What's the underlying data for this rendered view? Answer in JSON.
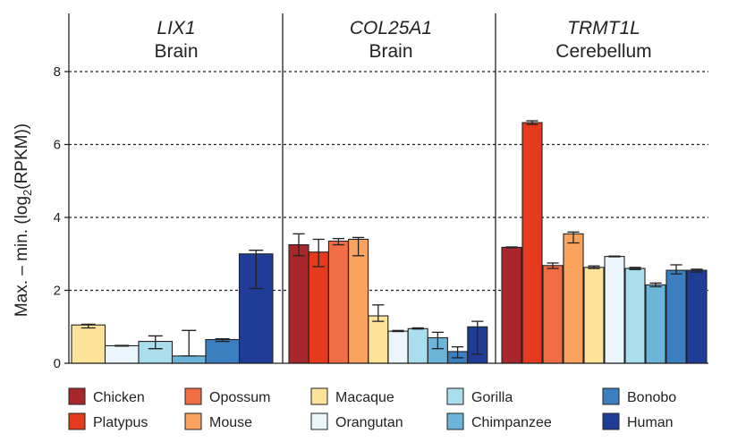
{
  "chart_data": {
    "type": "bar",
    "ylabel_main": "Max. – min. (log",
    "ylabel_sub": "2",
    "ylabel_tail": "(RPKM))",
    "ylim": [
      0,
      9
    ],
    "yticks": [
      "0",
      "2",
      "4",
      "6",
      "8"
    ],
    "grid": "horizontal dashed",
    "legend_position": "bottom",
    "species": [
      {
        "name": "Chicken",
        "color": "#a8272a"
      },
      {
        "name": "Platypus",
        "color": "#e63a1e"
      },
      {
        "name": "Opossum",
        "color": "#f26c44"
      },
      {
        "name": "Mouse",
        "color": "#f9a35e"
      },
      {
        "name": "Macaque",
        "color": "#fde39a"
      },
      {
        "name": "Orangutan",
        "color": "#eaf6fb"
      },
      {
        "name": "Gorilla",
        "color": "#aadded"
      },
      {
        "name": "Chimpanzee",
        "color": "#6cb4d8"
      },
      {
        "name": "Bonobo",
        "color": "#3b7fc1"
      },
      {
        "name": "Human",
        "color": "#1f3c96"
      }
    ],
    "legend_order": [
      "Chicken",
      "Platypus",
      "Opossum",
      "Mouse",
      "Macaque",
      "Orangutan",
      "Gorilla",
      "Chimpanzee",
      "Bonobo",
      "Human"
    ],
    "panels": [
      {
        "gene": "LIX1",
        "tissue": "Brain",
        "bars": [
          {
            "species": "Macaque",
            "value": 1.05,
            "low": 0.97,
            "high": 1.07
          },
          {
            "species": "Orangutan",
            "value": 0.48,
            "low": 0.47,
            "high": 0.49
          },
          {
            "species": "Gorilla",
            "value": 0.6,
            "low": 0.4,
            "high": 0.75
          },
          {
            "species": "Chimpanzee",
            "value": 0.2,
            "low": 0.2,
            "high": 0.9
          },
          {
            "species": "Bonobo",
            "value": 0.65,
            "low": 0.6,
            "high": 0.67
          },
          {
            "species": "Human",
            "value": 3.0,
            "low": 2.05,
            "high": 3.1
          }
        ]
      },
      {
        "gene": "COL25A1",
        "tissue": "Brain",
        "bars": [
          {
            "species": "Chicken",
            "value": 3.25,
            "low": 2.95,
            "high": 3.55
          },
          {
            "species": "Platypus",
            "value": 3.05,
            "low": 2.65,
            "high": 3.4
          },
          {
            "species": "Opossum",
            "value": 3.35,
            "low": 3.25,
            "high": 3.42
          },
          {
            "species": "Mouse",
            "value": 3.4,
            "low": 2.95,
            "high": 3.45
          },
          {
            "species": "Macaque",
            "value": 1.3,
            "low": 1.15,
            "high": 1.6
          },
          {
            "species": "Orangutan",
            "value": 0.88,
            "low": 0.87,
            "high": 0.9
          },
          {
            "species": "Gorilla",
            "value": 0.95,
            "low": 0.94,
            "high": 0.97
          },
          {
            "species": "Chimpanzee",
            "value": 0.7,
            "low": 0.4,
            "high": 0.85
          },
          {
            "species": "Bonobo",
            "value": 0.32,
            "low": 0.15,
            "high": 0.45
          },
          {
            "species": "Human",
            "value": 1.0,
            "low": 0.25,
            "high": 1.15
          }
        ]
      },
      {
        "gene": "TRMT1L",
        "tissue": "Cerebellum",
        "bars": [
          {
            "species": "Chicken",
            "value": 3.18,
            "low": 3.17,
            "high": 3.19
          },
          {
            "species": "Platypus",
            "value": 6.6,
            "low": 6.55,
            "high": 6.65
          },
          {
            "species": "Opossum",
            "value": 2.68,
            "low": 2.6,
            "high": 2.75
          },
          {
            "species": "Mouse",
            "value": 3.55,
            "low": 3.3,
            "high": 3.6
          },
          {
            "species": "Macaque",
            "value": 2.63,
            "low": 2.6,
            "high": 2.67
          },
          {
            "species": "Orangutan",
            "value": 2.93,
            "low": 2.92,
            "high": 2.94
          },
          {
            "species": "Gorilla",
            "value": 2.6,
            "low": 2.57,
            "high": 2.63
          },
          {
            "species": "Chimpanzee",
            "value": 2.15,
            "low": 2.1,
            "high": 2.2
          },
          {
            "species": "Bonobo",
            "value": 2.55,
            "low": 2.45,
            "high": 2.7
          },
          {
            "species": "Human",
            "value": 2.55,
            "low": 2.5,
            "high": 2.58
          }
        ]
      }
    ]
  }
}
